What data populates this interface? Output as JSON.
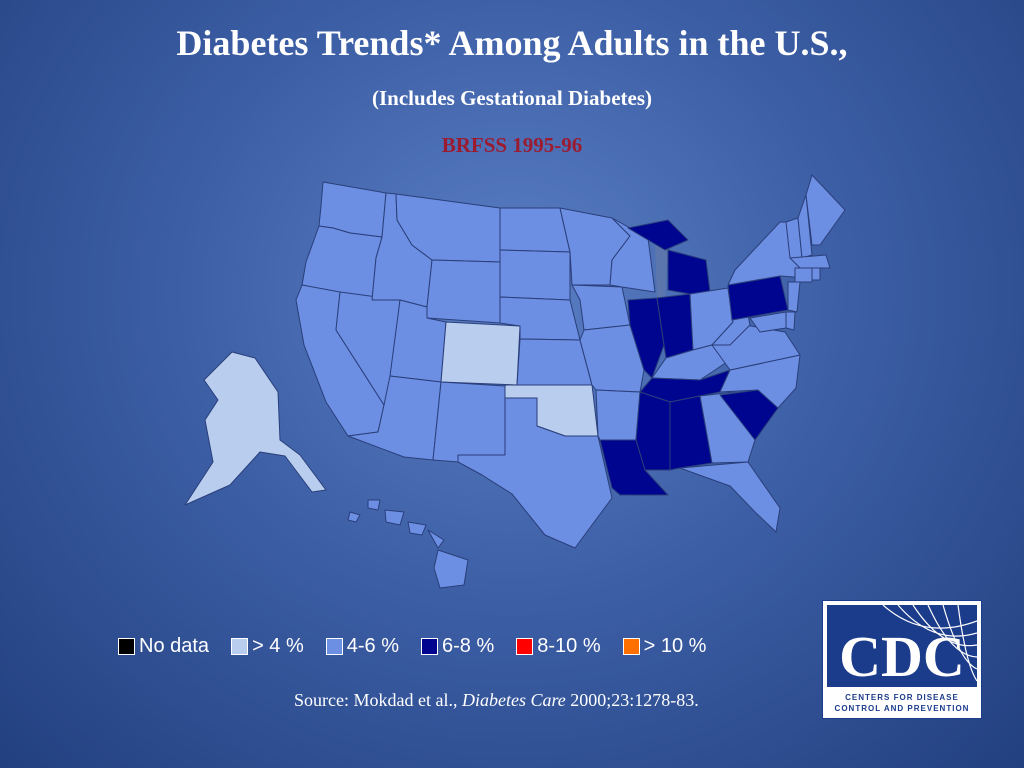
{
  "slide": {
    "title": "Diabetes Trends* Among Adults in the U.S.,",
    "subtitle": "(Includes Gestational Diabetes)",
    "survey_label": "BRFSS 1995-96",
    "source_prefix": "Source: Mokdad et al., ",
    "source_journal": "Diabetes Care",
    "source_suffix": " 2000;23:1278-83."
  },
  "colors": {
    "title_text": "#ffffff",
    "survey_label": "#9b1b30",
    "map_border": "#2a3f7a",
    "no_data": "#000000",
    "lt4": "#b9cdef",
    "4_6": "#6c8ee3",
    "6_8": "#00058f",
    "8_10": "#ff0000",
    "gt10": "#ff7000"
  },
  "legend": [
    {
      "key": "no_data",
      "label": "No data"
    },
    {
      "key": "lt4",
      "label": "> 4 %"
    },
    {
      "key": "4_6",
      "label": "4-6 %"
    },
    {
      "key": "6_8",
      "label": "6-8 %"
    },
    {
      "key": "8_10",
      "label": "8-10 %"
    },
    {
      "key": "gt10",
      "label": "> 10 %"
    }
  ],
  "map_data": {
    "lt4": [
      "CO",
      "OK",
      "AK"
    ],
    "4_6": [
      "WA",
      "OR",
      "CA",
      "NV",
      "ID",
      "MT",
      "WY",
      "UT",
      "AZ",
      "NM",
      "ND",
      "SD",
      "NE",
      "KS",
      "TX",
      "MN",
      "IA",
      "MO",
      "AR",
      "WI",
      "OH",
      "KY",
      "WV",
      "VA",
      "NC",
      "GA",
      "FL",
      "NY",
      "VT",
      "NH",
      "ME",
      "MA",
      "CT",
      "RI",
      "NJ",
      "DE",
      "MD",
      "HI"
    ],
    "6_8": [
      "IL",
      "IN",
      "MI",
      "TN",
      "MS",
      "AL",
      "LA",
      "SC",
      "PA"
    ]
  },
  "logo": {
    "text": "CDC",
    "line1": "CENTERS FOR DISEASE",
    "line2": "CONTROL AND PREVENTION"
  }
}
